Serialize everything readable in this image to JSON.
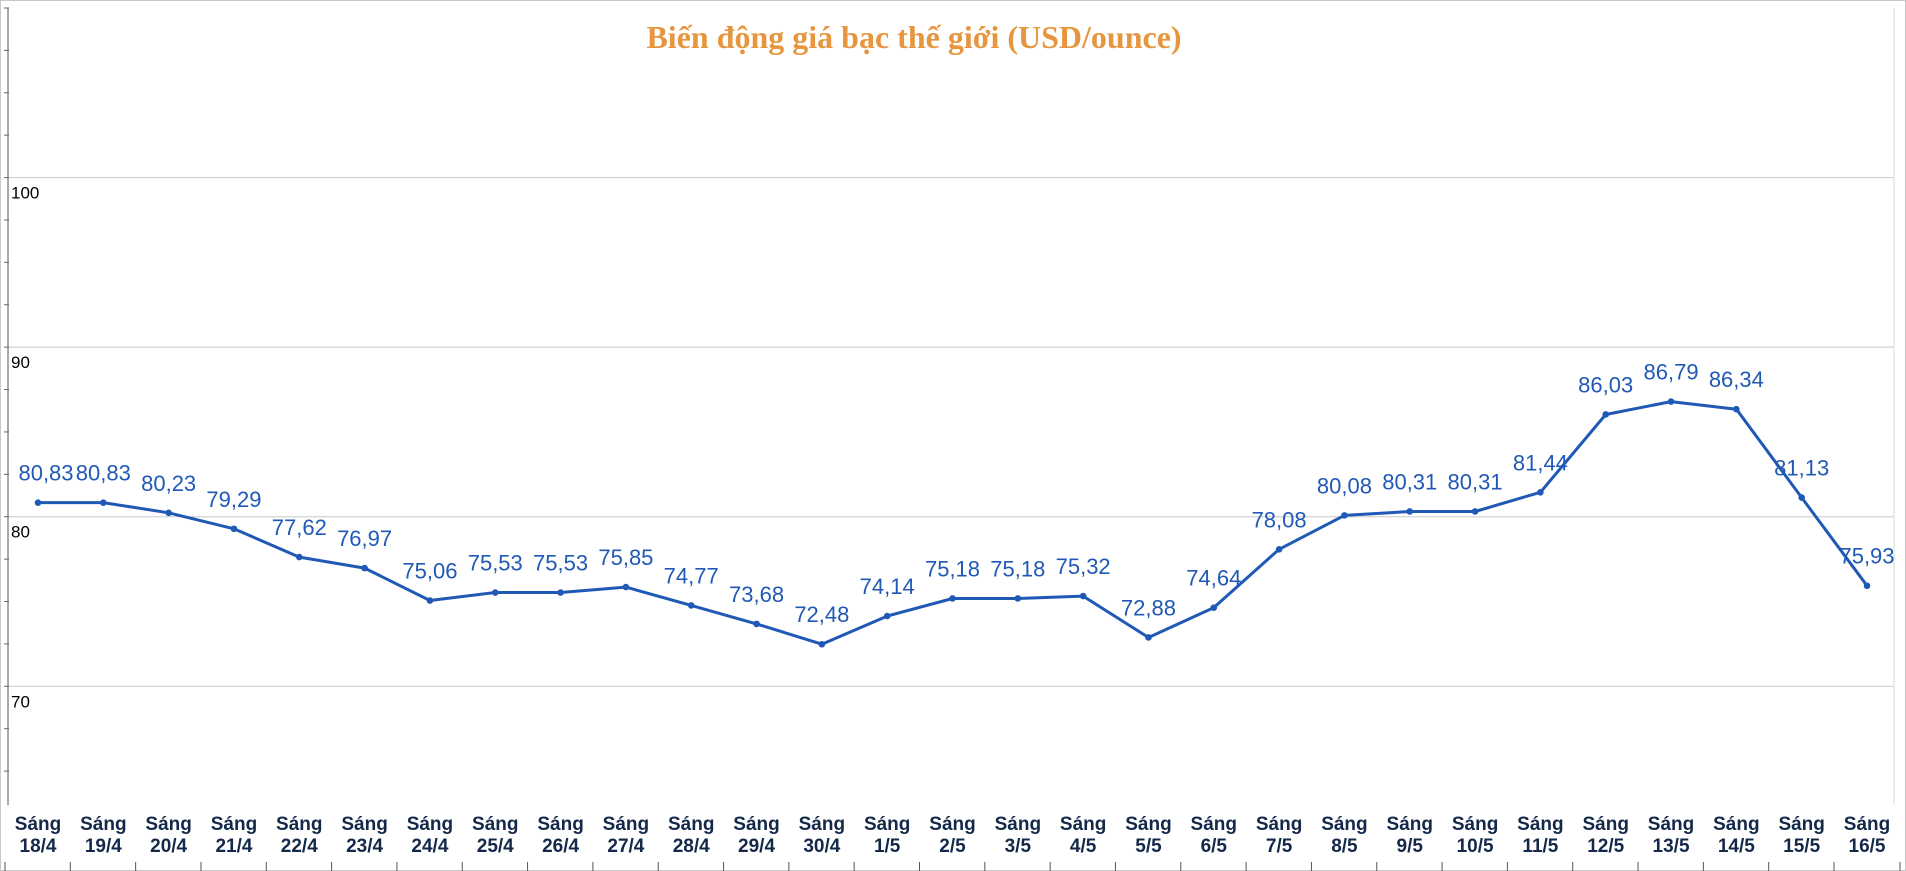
{
  "chart_data": {
    "type": "line",
    "title": "Biến động giá bạc thế giới (USD/ounce)",
    "categories": [
      [
        "Sáng",
        "18/4"
      ],
      [
        "Sáng",
        "19/4"
      ],
      [
        "Sáng",
        "20/4"
      ],
      [
        "Sáng",
        "21/4"
      ],
      [
        "Sáng",
        "22/4"
      ],
      [
        "Sáng",
        "23/4"
      ],
      [
        "Sáng",
        "24/4"
      ],
      [
        "Sáng",
        "25/4"
      ],
      [
        "Sáng",
        "26/4"
      ],
      [
        "Sáng",
        "27/4"
      ],
      [
        "Sáng",
        "28/4"
      ],
      [
        "Sáng",
        "29/4"
      ],
      [
        "Sáng",
        "30/4"
      ],
      [
        "Sáng",
        "1/5"
      ],
      [
        "Sáng",
        "2/5"
      ],
      [
        "Sáng",
        "3/5"
      ],
      [
        "Sáng",
        "4/5"
      ],
      [
        "Sáng",
        "5/5"
      ],
      [
        "Sáng",
        "6/5"
      ],
      [
        "Sáng",
        "7/5"
      ],
      [
        "Sáng",
        "8/5"
      ],
      [
        "Sáng",
        "9/5"
      ],
      [
        "Sáng",
        "10/5"
      ],
      [
        "Sáng",
        "11/5"
      ],
      [
        "Sáng",
        "12/5"
      ],
      [
        "Sáng",
        "13/5"
      ],
      [
        "Sáng",
        "14/5"
      ],
      [
        "Sáng",
        "15/5"
      ],
      [
        "Sáng",
        "16/5"
      ]
    ],
    "values": [
      80.83,
      80.83,
      80.23,
      79.29,
      77.62,
      76.97,
      75.06,
      75.53,
      75.53,
      75.85,
      74.77,
      73.68,
      72.48,
      74.14,
      75.18,
      75.18,
      75.32,
      72.88,
      74.64,
      78.08,
      80.08,
      80.31,
      80.31,
      81.44,
      86.03,
      86.79,
      86.34,
      81.13,
      75.93
    ],
    "data_labels": [
      "80,83",
      "80,83",
      "80,23",
      "79,29",
      "77,62",
      "76,97",
      "75,06",
      "75,53",
      "75,53",
      "75,85",
      "74,77",
      "73,68",
      "72,48",
      "74,14",
      "75,18",
      "75,18",
      "75,32",
      "72,88",
      "74,64",
      "78,08",
      "80,08",
      "80,31",
      "80,31",
      "81,44",
      "86,03",
      "86,79",
      "86,34",
      "81,13",
      "75,93"
    ],
    "yticks": [
      70,
      80,
      90,
      100
    ],
    "ylim": [
      63,
      110
    ],
    "xlabel": "",
    "ylabel": "",
    "grid": true,
    "legend": "none",
    "colors": {
      "line": "#2059b5",
      "label": "#2059b5",
      "title": "#e6963f",
      "grid": "#d2d2d2",
      "axis": "#555555"
    }
  }
}
